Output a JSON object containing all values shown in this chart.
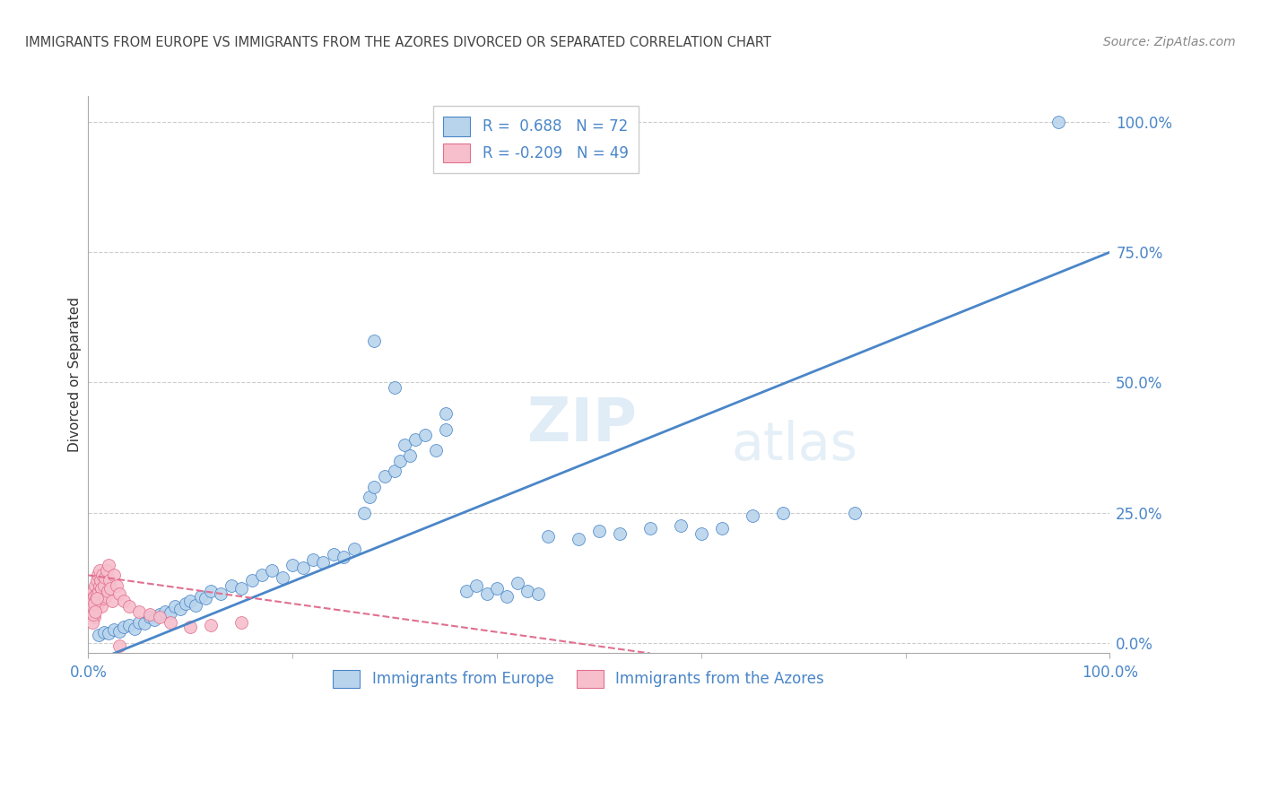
{
  "title": "IMMIGRANTS FROM EUROPE VS IMMIGRANTS FROM THE AZORES DIVORCED OR SEPARATED CORRELATION CHART",
  "source": "Source: ZipAtlas.com",
  "ylabel": "Divorced or Separated",
  "ytick_values": [
    0,
    25,
    50,
    75,
    100
  ],
  "xlim": [
    0,
    100
  ],
  "ylim": [
    -2,
    105
  ],
  "watermark_zip": "ZIP",
  "watermark_atlas": "atlas",
  "blue_color": "#b8d4ec",
  "pink_color": "#f7bfcc",
  "line_blue": "#4a86c8",
  "line_pink": "#e07090",
  "axis_color": "#4a86c8",
  "grid_color": "#cccccc",
  "title_color": "#555555",
  "blue_scatter": [
    [
      1.0,
      1.5
    ],
    [
      1.5,
      2.0
    ],
    [
      2.0,
      1.8
    ],
    [
      2.5,
      2.5
    ],
    [
      3.0,
      2.2
    ],
    [
      3.5,
      3.0
    ],
    [
      4.0,
      3.5
    ],
    [
      4.5,
      2.8
    ],
    [
      5.0,
      4.0
    ],
    [
      5.5,
      3.8
    ],
    [
      6.0,
      5.0
    ],
    [
      6.5,
      4.5
    ],
    [
      7.0,
      5.5
    ],
    [
      7.5,
      6.0
    ],
    [
      8.0,
      5.8
    ],
    [
      8.5,
      7.0
    ],
    [
      9.0,
      6.5
    ],
    [
      9.5,
      7.5
    ],
    [
      10.0,
      8.0
    ],
    [
      10.5,
      7.2
    ],
    [
      11.0,
      9.0
    ],
    [
      11.5,
      8.5
    ],
    [
      12.0,
      10.0
    ],
    [
      13.0,
      9.5
    ],
    [
      14.0,
      11.0
    ],
    [
      15.0,
      10.5
    ],
    [
      16.0,
      12.0
    ],
    [
      17.0,
      13.0
    ],
    [
      18.0,
      14.0
    ],
    [
      19.0,
      12.5
    ],
    [
      20.0,
      15.0
    ],
    [
      21.0,
      14.5
    ],
    [
      22.0,
      16.0
    ],
    [
      23.0,
      15.5
    ],
    [
      24.0,
      17.0
    ],
    [
      25.0,
      16.5
    ],
    [
      26.0,
      18.0
    ],
    [
      27.0,
      25.0
    ],
    [
      27.5,
      28.0
    ],
    [
      28.0,
      30.0
    ],
    [
      29.0,
      32.0
    ],
    [
      30.0,
      33.0
    ],
    [
      30.5,
      35.0
    ],
    [
      31.0,
      38.0
    ],
    [
      31.5,
      36.0
    ],
    [
      32.0,
      39.0
    ],
    [
      33.0,
      40.0
    ],
    [
      34.0,
      37.0
    ],
    [
      35.0,
      41.0
    ],
    [
      28.0,
      58.0
    ],
    [
      30.0,
      49.0
    ],
    [
      35.0,
      44.0
    ],
    [
      37.0,
      10.0
    ],
    [
      38.0,
      11.0
    ],
    [
      39.0,
      9.5
    ],
    [
      40.0,
      10.5
    ],
    [
      41.0,
      9.0
    ],
    [
      42.0,
      11.5
    ],
    [
      43.0,
      10.0
    ],
    [
      44.0,
      9.5
    ],
    [
      45.0,
      20.5
    ],
    [
      48.0,
      20.0
    ],
    [
      50.0,
      21.5
    ],
    [
      52.0,
      21.0
    ],
    [
      55.0,
      22.0
    ],
    [
      58.0,
      22.5
    ],
    [
      60.0,
      21.0
    ],
    [
      62.0,
      22.0
    ],
    [
      65.0,
      24.5
    ],
    [
      68.0,
      25.0
    ],
    [
      75.0,
      25.0
    ],
    [
      95.0,
      100.0
    ]
  ],
  "pink_scatter": [
    [
      0.3,
      8.0
    ],
    [
      0.4,
      6.5
    ],
    [
      0.5,
      10.0
    ],
    [
      0.5,
      7.0
    ],
    [
      0.6,
      9.0
    ],
    [
      0.6,
      5.0
    ],
    [
      0.7,
      11.0
    ],
    [
      0.7,
      8.0
    ],
    [
      0.8,
      12.0
    ],
    [
      0.8,
      9.5
    ],
    [
      0.9,
      7.5
    ],
    [
      0.9,
      13.0
    ],
    [
      1.0,
      10.0
    ],
    [
      1.0,
      8.0
    ],
    [
      1.1,
      11.0
    ],
    [
      1.1,
      14.0
    ],
    [
      1.2,
      9.0
    ],
    [
      1.2,
      12.0
    ],
    [
      1.3,
      10.5
    ],
    [
      1.3,
      7.0
    ],
    [
      1.4,
      13.0
    ],
    [
      1.5,
      11.0
    ],
    [
      1.5,
      8.5
    ],
    [
      1.6,
      12.5
    ],
    [
      1.7,
      9.0
    ],
    [
      1.8,
      14.0
    ],
    [
      1.9,
      10.0
    ],
    [
      2.0,
      15.0
    ],
    [
      2.1,
      12.0
    ],
    [
      2.2,
      10.5
    ],
    [
      2.3,
      8.0
    ],
    [
      2.5,
      13.0
    ],
    [
      2.8,
      11.0
    ],
    [
      3.0,
      9.5
    ],
    [
      3.5,
      8.0
    ],
    [
      4.0,
      7.0
    ],
    [
      5.0,
      6.0
    ],
    [
      6.0,
      5.5
    ],
    [
      7.0,
      5.0
    ],
    [
      8.0,
      4.0
    ],
    [
      0.4,
      4.0
    ],
    [
      0.5,
      5.5
    ],
    [
      0.6,
      7.5
    ],
    [
      0.7,
      6.0
    ],
    [
      0.8,
      8.5
    ],
    [
      10.0,
      3.0
    ],
    [
      12.0,
      3.5
    ],
    [
      15.0,
      4.0
    ],
    [
      3.0,
      -0.5
    ]
  ],
  "blue_line": {
    "x0": 0,
    "y0": -4,
    "x1": 100,
    "y1": 75
  },
  "pink_line": {
    "x0": 0,
    "y0": 13,
    "x1": 55,
    "y1": -2
  }
}
